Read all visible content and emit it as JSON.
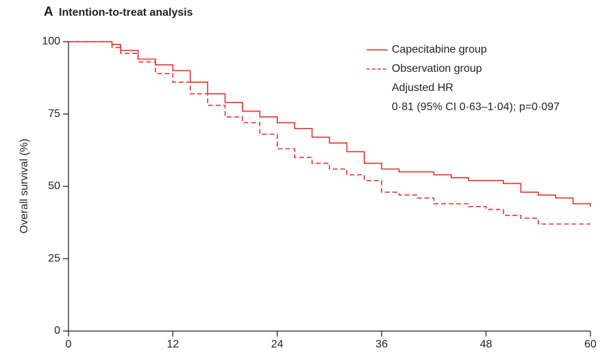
{
  "chart_data": {
    "type": "step",
    "panel_label": "A",
    "title": "Intention-to-treat analysis",
    "y_label": "Overall survival (%)",
    "x": [
      0,
      3,
      5,
      6,
      8,
      10,
      12,
      14,
      16,
      18,
      20,
      22,
      24,
      26,
      28,
      30,
      32,
      34,
      36,
      38,
      40,
      42,
      44,
      46,
      48,
      50,
      52,
      54,
      56,
      58,
      60
    ],
    "series": [
      {
        "name": "Capecitabine group",
        "color": "#e8312a",
        "line_style": "solid",
        "values": [
          100,
          100,
          99,
          97,
          94,
          92,
          90,
          86,
          82,
          79,
          76,
          74,
          72,
          70,
          67,
          65,
          62,
          58,
          56,
          55,
          55,
          54,
          53,
          52,
          52,
          51,
          48,
          47,
          46,
          44,
          43
        ]
      },
      {
        "name": "Observation group",
        "color": "#e8312a",
        "line_style": "dashed",
        "values": [
          100,
          100,
          98,
          96,
          93,
          89,
          86,
          82,
          78,
          74,
          72,
          68,
          63,
          60,
          58,
          56,
          54,
          52,
          48,
          47,
          46,
          44,
          44,
          43,
          42,
          40,
          39,
          37,
          37,
          37,
          37
        ]
      }
    ],
    "annotations": [
      "Adjusted HR",
      "0·81 (95% CI 0·63–1·04); p=0·097"
    ],
    "xlim": [
      0,
      60
    ],
    "xticks": [
      0,
      12,
      24,
      36,
      48,
      60
    ],
    "ylim": [
      0,
      100
    ],
    "yticks": [
      0,
      25,
      50,
      75,
      100
    ]
  }
}
